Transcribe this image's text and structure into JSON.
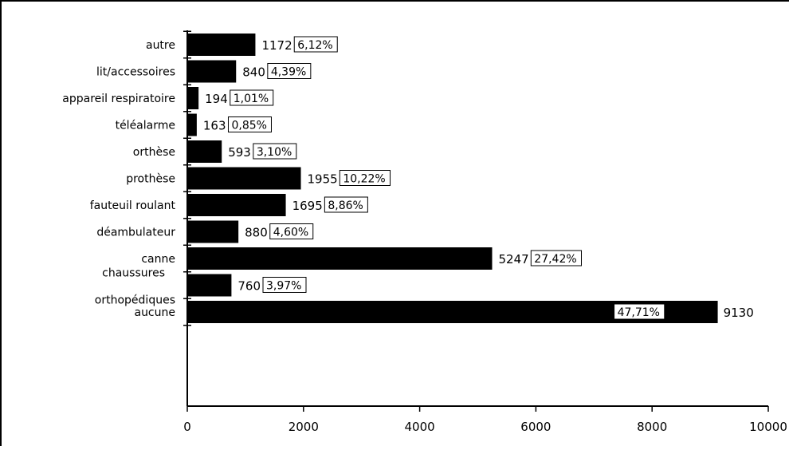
{
  "chart_data": {
    "type": "bar",
    "orientation": "horizontal",
    "title": "",
    "xlabel": "",
    "ylabel": "",
    "xlim": [
      0,
      10000
    ],
    "xticks": [
      0,
      2000,
      4000,
      6000,
      8000,
      10000
    ],
    "grid": false,
    "bar_color": "#000000",
    "categories": [
      {
        "name": "autre",
        "value": 1172,
        "percent": "6,12%"
      },
      {
        "name": "lit/accessoires",
        "value": 840,
        "percent": "4,39%"
      },
      {
        "name": "appareil respiratoire",
        "value": 194,
        "percent": "1,01%"
      },
      {
        "name": "téléalarme",
        "value": 163,
        "percent": "0,85%"
      },
      {
        "name": "orthèse",
        "value": 593,
        "percent": "3,10%"
      },
      {
        "name": "prothèse",
        "value": 1955,
        "percent": "10,22%"
      },
      {
        "name": "fauteuil roulant",
        "value": 1695,
        "percent": "8,86%"
      },
      {
        "name": "déambulateur",
        "value": 880,
        "percent": "4,60%"
      },
      {
        "name": "canne",
        "value": 5247,
        "percent": "27,42%"
      },
      {
        "name": "chaussures orthopédiques",
        "value": 760,
        "percent": "3,97%",
        "label_lines": [
          "chaussures",
          "orthopédiques"
        ]
      },
      {
        "name": "aucune",
        "value": 9130,
        "percent": "47,71%"
      }
    ]
  }
}
